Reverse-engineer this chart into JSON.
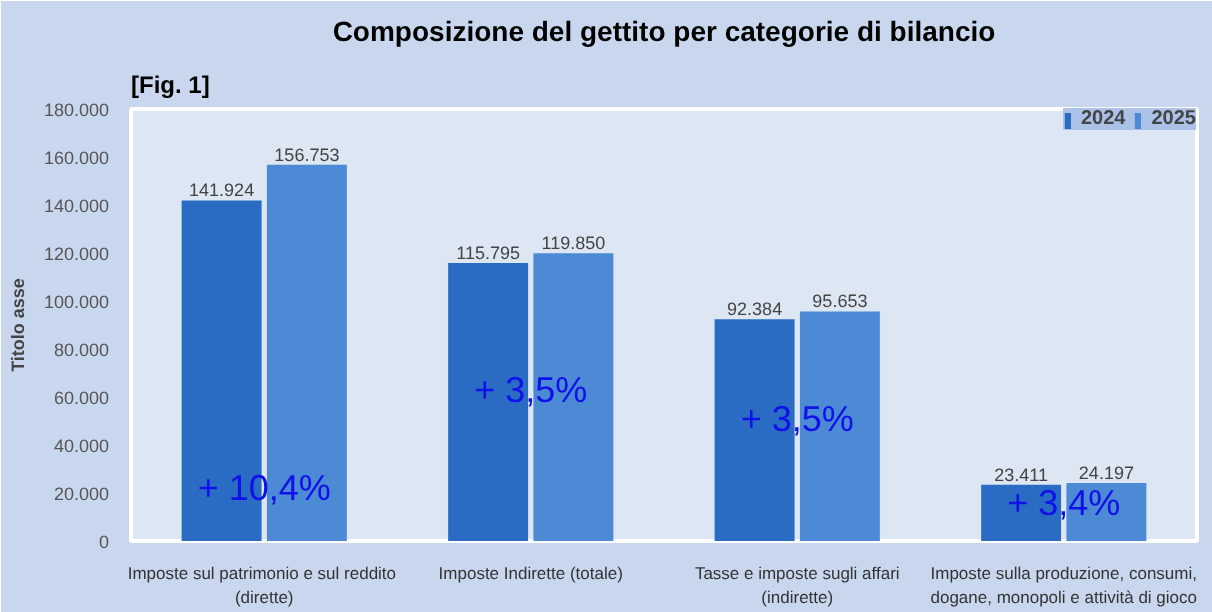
{
  "chart_data": {
    "type": "bar",
    "title": "Composizione del gettito per categorie di bilancio",
    "ylabel": "Titolo asse",
    "categories": [
      "Imposte sul patrimonio e sul  reddito\n(dirette)",
      "Imposte Indirette (totale)",
      "Tasse e imposte sugli affari\n(indirette)",
      "Imposte sulla produzione, consumi,\ndogane, monopoli e attività di gioco"
    ],
    "series": [
      {
        "name": "2024",
        "color": "#2a6cc4",
        "values": [
          141924,
          115795,
          92384,
          23411
        ],
        "value_labels": [
          "141.924",
          "115.795",
          "92.384",
          "23.411"
        ]
      },
      {
        "name": "2025",
        "color": "#4c8ad6",
        "values": [
          156753,
          119850,
          95653,
          24197
        ],
        "value_labels": [
          "156.753",
          "119.850",
          "95.653",
          "24.197"
        ]
      }
    ],
    "ylim": [
      0,
      180000
    ],
    "yticks": [
      {
        "value": 0,
        "label": "0"
      },
      {
        "value": 20000,
        "label": "20.000"
      },
      {
        "value": 40000,
        "label": "40.000"
      },
      {
        "value": 60000,
        "label": "60.000"
      },
      {
        "value": 80000,
        "label": "80.000"
      },
      {
        "value": 100000,
        "label": "100.000"
      },
      {
        "value": 120000,
        "label": "120.000"
      },
      {
        "value": 140000,
        "label": "140.000"
      },
      {
        "value": 160000,
        "label": "160.000"
      },
      {
        "value": 180000,
        "label": "180.000"
      }
    ],
    "annotations": [
      "[Fig. 1]",
      {
        "text": "+ 10,4%",
        "x": "Imposte sul patrimonio e sul  reddito\n(dirette)",
        "y": 22000
      },
      {
        "text": "+ 3,5%",
        "x": "Imposte Indirette (totale)",
        "y": 63000
      },
      {
        "text": "+ 3,5%",
        "x": "Tasse e imposte sugli affari\n(indirette)",
        "y": 51000
      },
      {
        "text": "+ 3,4%",
        "x": "Imposte sulla produzione, consumi,\ndogane, monopoli e attività di gioco",
        "y": 16000
      }
    ],
    "grid": false,
    "legend": "top right"
  }
}
